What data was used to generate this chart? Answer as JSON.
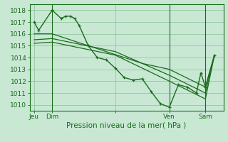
{
  "background_color": "#c8e8d4",
  "grid_color": "#90c8a0",
  "line_color": "#1a6b1a",
  "title": "Pression niveau de la mer( hPa )",
  "ylabel_ticks": [
    1010,
    1011,
    1012,
    1013,
    1014,
    1015,
    1016,
    1017,
    1018
  ],
  "ylim": [
    1009.5,
    1018.5
  ],
  "x_tick_positions": [
    0,
    2,
    9,
    15,
    19
  ],
  "x_tick_labels": [
    "Jeu",
    "Dim",
    "",
    "Ven",
    "Sam"
  ],
  "series": [
    {
      "x": [
        0,
        0.5,
        2,
        3,
        3.5,
        4,
        4.5,
        5,
        6,
        7,
        8,
        9,
        10,
        11,
        12,
        13,
        14,
        15,
        16,
        17,
        18,
        18.5,
        19,
        20
      ],
      "y": [
        1017.0,
        1016.3,
        1018.0,
        1017.3,
        1017.5,
        1017.5,
        1017.3,
        1016.7,
        1015.0,
        1014.0,
        1013.8,
        1013.1,
        1012.3,
        1012.1,
        1012.2,
        1011.1,
        1010.1,
        1009.8,
        1011.7,
        1011.5,
        1011.0,
        1012.7,
        1011.5,
        1014.2
      ]
    },
    {
      "x": [
        0,
        2,
        6,
        12,
        15,
        19,
        20
      ],
      "y": [
        1016.0,
        1016.0,
        1015.0,
        1013.5,
        1013.0,
        1011.5,
        1014.2
      ]
    },
    {
      "x": [
        0,
        2,
        9,
        15,
        19,
        20
      ],
      "y": [
        1015.5,
        1015.6,
        1014.5,
        1012.5,
        1011.0,
        1014.2
      ]
    },
    {
      "x": [
        0,
        2,
        9,
        15,
        19,
        20
      ],
      "y": [
        1015.2,
        1015.3,
        1014.2,
        1012.0,
        1010.5,
        1014.2
      ]
    }
  ],
  "vlines": [
    2,
    15,
    19
  ],
  "xlim": [
    -0.5,
    21.0
  ],
  "title_fontsize": 7.5,
  "tick_fontsize": 6.5
}
